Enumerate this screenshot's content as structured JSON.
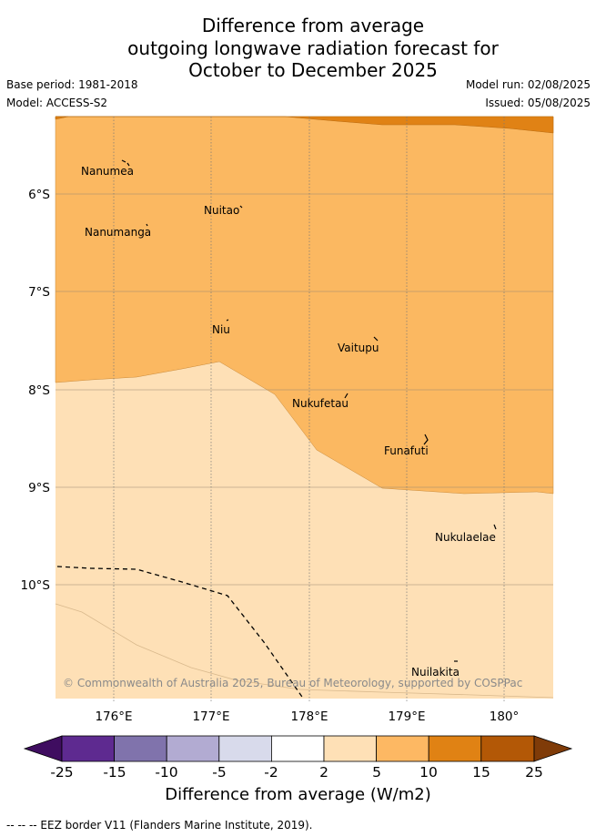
{
  "title_lines": [
    "Difference from average",
    "outgoing longwave radiation forecast for",
    "October to December 2025"
  ],
  "meta": {
    "base_period": "Base period: 1981-2018",
    "model": "Model: ACCESS-S2",
    "model_run": "Model run: 02/08/2025",
    "issued": "Issued: 05/08/2025"
  },
  "map": {
    "lat_labels": [
      "6°S",
      "7°S",
      "8°S",
      "9°S",
      "10°S"
    ],
    "lon_labels": [
      "176°E",
      "177°E",
      "178°E",
      "179°E",
      "180°"
    ],
    "islands": [
      "Nanumea",
      "Nuitao",
      "Nanumanga",
      "Niu",
      "Vaitupu",
      "Nukufetau",
      "Funafuti",
      "Nukulaelae",
      "Nuilakita"
    ],
    "copyright": "© Commonwealth of Australia 2025, Bureau of Meteorology, supported by COSPPac",
    "region_colors": {
      "5_to_10": "#fbb861",
      "2_to_5": "#fee0b6",
      "10_to_15": "#e08215"
    }
  },
  "colorbar": {
    "ticks": [
      "-25",
      "-15",
      "-10",
      "-5",
      "-2",
      "2",
      "5",
      "10",
      "15",
      "25"
    ],
    "colors": [
      "#3f0d60",
      "#5e2a90",
      "#8073ac",
      "#b2abd2",
      "#d8daeb",
      "#ffffff",
      "#fee0b6",
      "#fdb863",
      "#e08214",
      "#b35806",
      "#7f3b08"
    ],
    "title": "Difference from average (W/m2)"
  },
  "footnote": "-- -- -- EEZ border V11 (Flanders Marine Institute, 2019)."
}
